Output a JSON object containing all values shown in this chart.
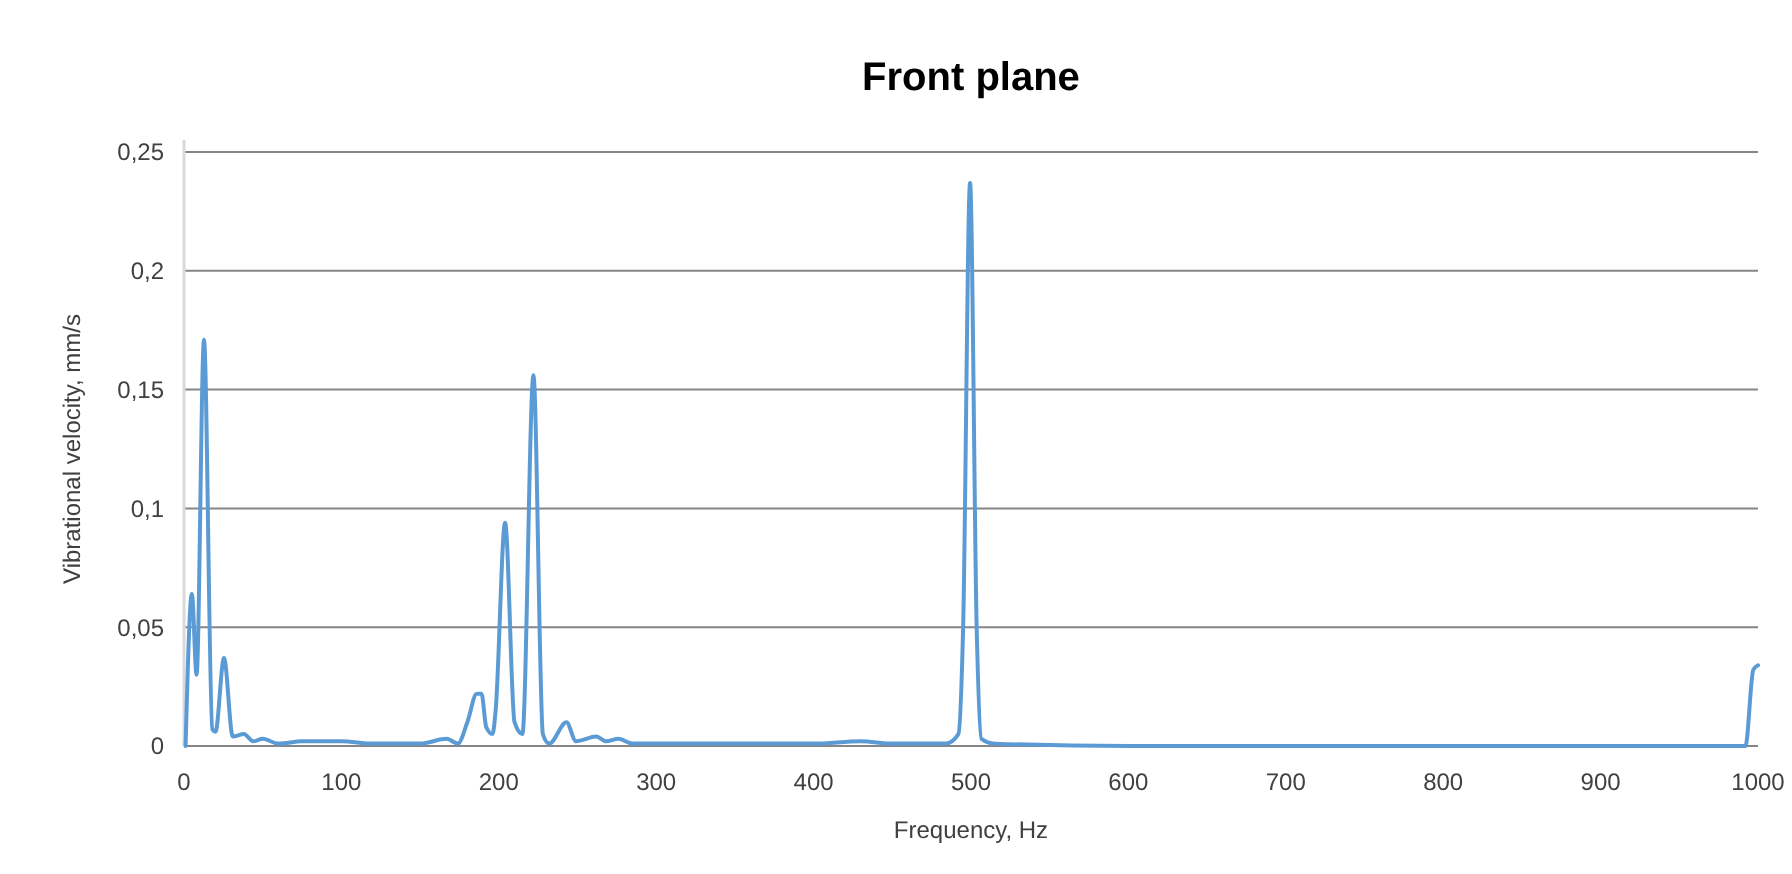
{
  "chart_data": {
    "type": "line",
    "title": "Front plane",
    "xlabel": "Frequency, Hz",
    "ylabel": "Vibrational velocity, mm/s",
    "xlim": [
      0,
      1000
    ],
    "xticks": [
      0,
      100,
      200,
      300,
      400,
      500,
      600,
      700,
      800,
      900,
      1000
    ],
    "ylim": [
      0,
      0.25
    ],
    "yticks": [
      {
        "value": 0,
        "label": "0"
      },
      {
        "value": 0.05,
        "label": "0,05"
      },
      {
        "value": 0.1,
        "label": "0,1"
      },
      {
        "value": 0.15,
        "label": "0,15"
      },
      {
        "value": 0.2,
        "label": "0,2"
      },
      {
        "value": 0.25,
        "label": "0,25"
      }
    ],
    "grid": "y",
    "marker": "none",
    "line_style": "solid",
    "series": [
      {
        "color": "#5b9bd5",
        "x": [
          1,
          5,
          8,
          12.7,
          18,
          20,
          25.4,
          31,
          38,
          44,
          50,
          60,
          75,
          100,
          120,
          150,
          167,
          174,
          180,
          186,
          189,
          192,
          196,
          198,
          204,
          210,
          215,
          222,
          228,
          232,
          243,
          249,
          262,
          268,
          276,
          285,
          300,
          350,
          400,
          430,
          450,
          484,
          492,
          495,
          499.4,
          503.6,
          506.6,
          515,
          600,
          700,
          800,
          900,
          992,
          997,
          1000
        ],
        "values": [
          0,
          0.064,
          0.03,
          0.171,
          0.007,
          0.006,
          0.037,
          0.004,
          0.005,
          0.002,
          0.003,
          0.001,
          0.002,
          0.002,
          0.001,
          0.001,
          0.003,
          0.001,
          0.01,
          0.022,
          0.022,
          0.008,
          0.005,
          0.015,
          0.094,
          0.01,
          0.005,
          0.156,
          0.005,
          0.001,
          0.01,
          0.002,
          0.004,
          0.002,
          0.003,
          0.001,
          0.001,
          0.001,
          0.001,
          0.002,
          0.001,
          0.001,
          0.005,
          0.05,
          0.237,
          0.05,
          0.003,
          0.001,
          0,
          0,
          0,
          0,
          0,
          0.032,
          0.034
        ]
      }
    ]
  }
}
